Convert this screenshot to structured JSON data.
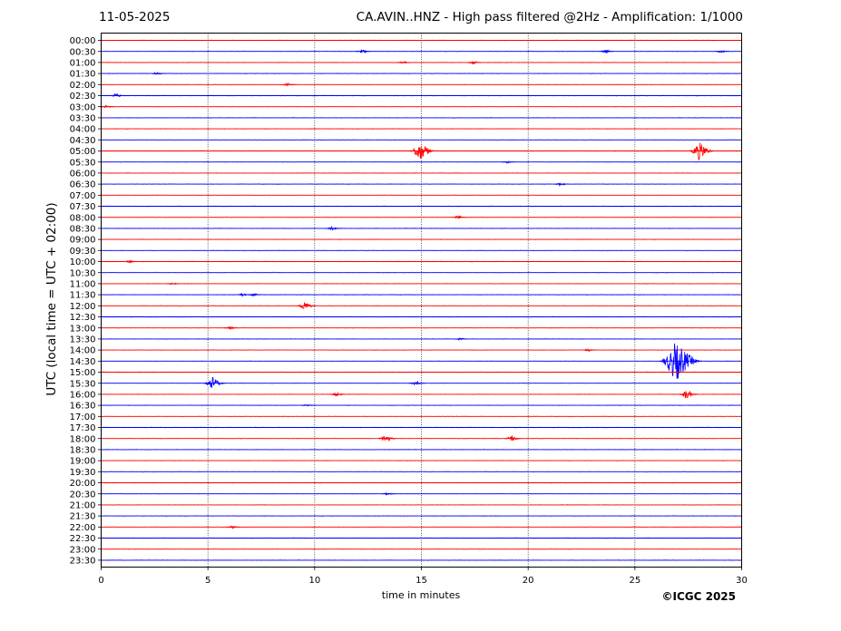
{
  "header": {
    "date": "11-05-2025",
    "title": "CA.AVIN..HNZ - High pass filtered @2Hz - Amplification: 1/1000"
  },
  "footer": {
    "copyright": "©ICGC 2025"
  },
  "chart_data": {
    "type": "line",
    "subtype": "helicorder",
    "title": "CA.AVIN..HNZ - High pass filtered @2Hz - Amplification: 1/1000",
    "xlabel": "time in minutes",
    "ylabel": "UTC (local time = UTC + 02:00)",
    "xlim": [
      0,
      30
    ],
    "xticks": [
      0,
      5,
      10,
      15,
      20,
      25,
      30
    ],
    "grid": "vertical dotted at 5-minute intervals",
    "trace_colors": [
      "#ff0000",
      "#0000ff"
    ],
    "rows": [
      "00:00",
      "00:30",
      "01:00",
      "01:30",
      "02:00",
      "02:30",
      "03:00",
      "03:30",
      "04:00",
      "04:30",
      "05:00",
      "05:30",
      "06:00",
      "06:30",
      "07:00",
      "07:30",
      "08:00",
      "08:30",
      "09:00",
      "09:30",
      "10:00",
      "10:30",
      "11:00",
      "11:30",
      "12:00",
      "12:30",
      "13:00",
      "13:30",
      "14:00",
      "14:30",
      "15:00",
      "15:30",
      "16:00",
      "16:30",
      "17:00",
      "17:30",
      "18:00",
      "18:30",
      "19:00",
      "19:30",
      "20:00",
      "20:30",
      "21:00",
      "21:30",
      "22:00",
      "22:30",
      "23:00",
      "23:30"
    ],
    "events": [
      {
        "row": "00:30",
        "minute": 12.2,
        "amplitude": 0.35
      },
      {
        "row": "00:30",
        "minute": 23.6,
        "amplitude": 0.35
      },
      {
        "row": "00:30",
        "minute": 29.0,
        "amplitude": 0.3
      },
      {
        "row": "01:00",
        "minute": 14.1,
        "amplitude": 0.25
      },
      {
        "row": "01:00",
        "minute": 17.4,
        "amplitude": 0.3
      },
      {
        "row": "01:30",
        "minute": 2.6,
        "amplitude": 0.3
      },
      {
        "row": "02:00",
        "minute": 8.7,
        "amplitude": 0.25
      },
      {
        "row": "02:30",
        "minute": 0.7,
        "amplitude": 0.35
      },
      {
        "row": "03:00",
        "minute": 0.2,
        "amplitude": 0.25
      },
      {
        "row": "05:00",
        "minute": 14.9,
        "amplitude": 1.6
      },
      {
        "row": "05:00",
        "minute": 28.0,
        "amplitude": 1.5
      },
      {
        "row": "05:30",
        "minute": 19.0,
        "amplitude": 0.2
      },
      {
        "row": "06:30",
        "minute": 21.5,
        "amplitude": 0.25
      },
      {
        "row": "08:00",
        "minute": 16.7,
        "amplitude": 0.3
      },
      {
        "row": "08:30",
        "minute": 10.8,
        "amplitude": 0.3
      },
      {
        "row": "10:00",
        "minute": 1.3,
        "amplitude": 0.25
      },
      {
        "row": "11:00",
        "minute": 3.3,
        "amplitude": 0.2
      },
      {
        "row": "11:30",
        "minute": 6.6,
        "amplitude": 0.25
      },
      {
        "row": "11:30",
        "minute": 7.1,
        "amplitude": 0.3
      },
      {
        "row": "12:00",
        "minute": 9.5,
        "amplitude": 0.75
      },
      {
        "row": "13:00",
        "minute": 6.0,
        "amplitude": 0.25
      },
      {
        "row": "13:30",
        "minute": 16.8,
        "amplitude": 0.2
      },
      {
        "row": "14:00",
        "minute": 22.8,
        "amplitude": 0.25
      },
      {
        "row": "14:30",
        "minute": 26.9,
        "amplitude": 3.3
      },
      {
        "row": "15:30",
        "minute": 5.2,
        "amplitude": 1.1
      },
      {
        "row": "15:30",
        "minute": 14.7,
        "amplitude": 0.4
      },
      {
        "row": "16:00",
        "minute": 11.0,
        "amplitude": 0.4
      },
      {
        "row": "16:00",
        "minute": 27.4,
        "amplitude": 0.8
      },
      {
        "row": "16:30",
        "minute": 9.6,
        "amplitude": 0.2
      },
      {
        "row": "18:00",
        "minute": 13.3,
        "amplitude": 0.7
      },
      {
        "row": "18:00",
        "minute": 19.2,
        "amplitude": 0.55
      },
      {
        "row": "20:30",
        "minute": 13.4,
        "amplitude": 0.2
      },
      {
        "row": "22:00",
        "minute": 6.1,
        "amplitude": 0.25
      }
    ]
  }
}
